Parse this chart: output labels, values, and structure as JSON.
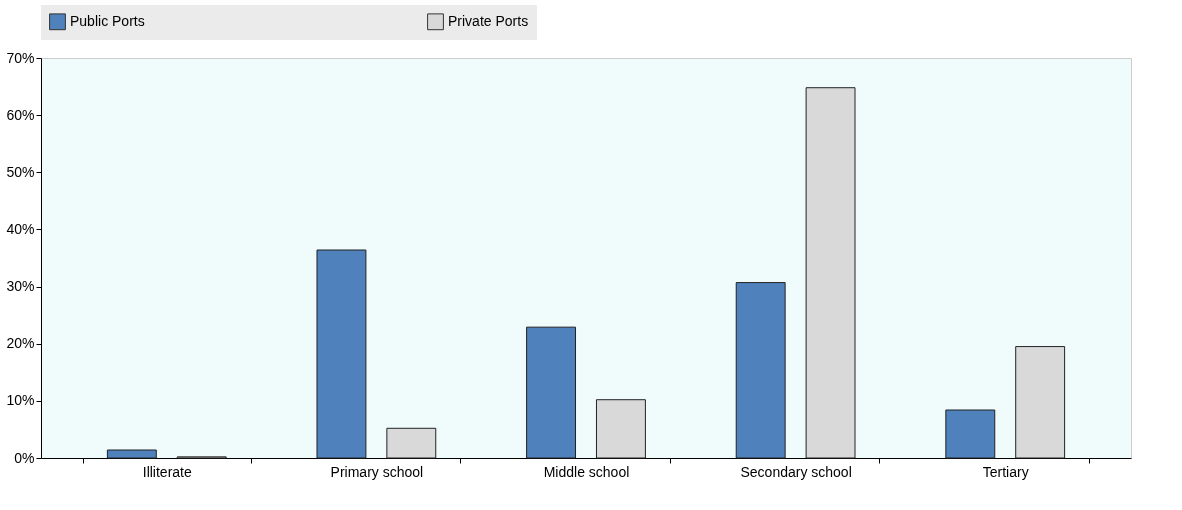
{
  "chart_data": {
    "type": "bar",
    "categories": [
      "Illiterate",
      "Primary school",
      "Middle school",
      "Secondary school",
      "Tertiary"
    ],
    "series": [
      {
        "name": "Public Ports",
        "color": "#4f81bd",
        "values": [
          1.4,
          36.4,
          22.9,
          30.7,
          8.4
        ]
      },
      {
        "name": "Private Ports",
        "color": "#d9d9d9",
        "values": [
          0.2,
          5.2,
          10.2,
          64.8,
          19.5
        ]
      }
    ],
    "ylim": [
      0,
      70
    ],
    "yticks": [
      {
        "value": 0,
        "label": "0%"
      },
      {
        "value": 10,
        "label": "10%"
      },
      {
        "value": 20,
        "label": "20%"
      },
      {
        "value": 30,
        "label": "30%"
      },
      {
        "value": 40,
        "label": "40%"
      },
      {
        "value": 50,
        "label": "50%"
      },
      {
        "value": 60,
        "label": "60%"
      },
      {
        "value": 70,
        "label": "70%"
      }
    ],
    "grid": false,
    "legend": "top"
  }
}
